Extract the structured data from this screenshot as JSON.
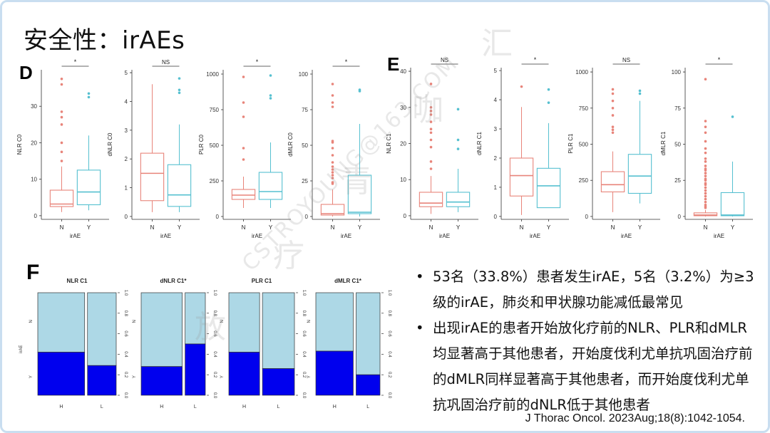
{
  "slide": {
    "title": "安全性：irAEs",
    "panel_labels": {
      "d": "D",
      "e": "E",
      "f": "F"
    },
    "bullets": [
      "53名（33.8%）患者发生irAE，5名（3.2%）为≥3级的irAE，肺炎和甲状腺功能减低最常见",
      "出现irAE的患者开始放化疗前的NLR、PLR和dMLR均显著高于其他患者，开始度伐利尤单抗巩固治疗前的dMLR同样显著高于其他患者，而开始度伐利尤单抗巩固治疗前的dNLR低于其他患者"
    ],
    "citation": "J Thorac Oncol. 2023Aug;18(8):1042-1054.",
    "watermark": [
      "放",
      "疗",
      "青",
      "咖",
      "汇",
      "CSTROYOUNG@163.COM"
    ]
  },
  "colors": {
    "n_box": "#e8847a",
    "y_box": "#56c0d0",
    "mosaic_light": "#add8e6",
    "mosaic_dark": "#0000ee",
    "frame": "#c9def0"
  },
  "chart_data": [
    {
      "type": "box",
      "panel": "D",
      "ylabel": "NLR C0",
      "xlabel": "irAE",
      "categories": [
        "N",
        "Y"
      ],
      "ylim": [
        -1,
        40
      ],
      "yticks": [
        "0",
        "10",
        "20",
        "30"
      ],
      "signif": "*",
      "boxes": [
        {
          "min": 1,
          "q1": 2.5,
          "median": 3.2,
          "q3": 7,
          "max": 13.5,
          "outliers": [
            15,
            17.5,
            20,
            25,
            27,
            28.5,
            36,
            37.5
          ]
        },
        {
          "min": 1.5,
          "q1": 3,
          "median": 6.5,
          "q3": 12.5,
          "max": 22,
          "outliers": [
            32.5,
            33.5
          ]
        }
      ]
    },
    {
      "type": "box",
      "panel": "D",
      "ylabel": "dNLR C0",
      "xlabel": "irAE",
      "categories": [
        "N",
        "Y"
      ],
      "ylim": [
        -0.1,
        5.1
      ],
      "yticks": [
        "0",
        "1",
        "2",
        "3",
        "4",
        "5"
      ],
      "signif": "NS",
      "boxes": [
        {
          "min": 0.15,
          "q1": 0.55,
          "median": 1.5,
          "q3": 2.2,
          "max": 4.6,
          "outliers": []
        },
        {
          "min": 0.15,
          "q1": 0.35,
          "median": 0.75,
          "q3": 1.8,
          "max": 3.2,
          "outliers": [
            4.3,
            4.4,
            4.8
          ]
        }
      ]
    },
    {
      "type": "box",
      "panel": "D",
      "ylabel": "PLR C0",
      "xlabel": "irAE",
      "categories": [
        "N",
        "Y"
      ],
      "ylim": [
        -20,
        1030
      ],
      "yticks": [
        "0",
        "250",
        "500",
        "750",
        "1000"
      ],
      "signif": "*",
      "boxes": [
        {
          "min": 60,
          "q1": 120,
          "median": 150,
          "q3": 190,
          "max": 280,
          "outliers": [
            400,
            480,
            700,
            800,
            980
          ]
        },
        {
          "min": 60,
          "q1": 120,
          "median": 175,
          "q3": 310,
          "max": 520,
          "outliers": [
            830,
            850,
            990
          ]
        }
      ]
    },
    {
      "type": "box",
      "panel": "D",
      "ylabel": "dMLR C0",
      "xlabel": "irAE",
      "categories": [
        "N",
        "Y"
      ],
      "ylim": [
        -2,
        103
      ],
      "yticks": [
        "0",
        "25",
        "50",
        "75",
        "100"
      ],
      "signif": "*",
      "boxes": [
        {
          "min": 0,
          "q1": 1,
          "median": 2,
          "q3": 8.5,
          "max": 19,
          "outliers": [
            23,
            24,
            27,
            29,
            31,
            33,
            35,
            38,
            43,
            48,
            52,
            53,
            77,
            80,
            85,
            93
          ]
        },
        {
          "min": 0,
          "q1": 2,
          "median": 3,
          "q3": 29,
          "max": 65,
          "outliers": [
            88,
            89
          ]
        }
      ]
    },
    {
      "type": "box",
      "panel": "E",
      "ylabel": "NLR C1",
      "xlabel": "irAE",
      "categories": [
        "N",
        "Y"
      ],
      "ylim": [
        -1,
        41
      ],
      "yticks": [
        "0",
        "10",
        "20",
        "30",
        "40"
      ],
      "signif": "NS",
      "boxes": [
        {
          "min": 0.5,
          "q1": 2.5,
          "median": 3.5,
          "q3": 6.5,
          "max": 11,
          "outliers": [
            13,
            15,
            19,
            21,
            23,
            24,
            26,
            28,
            29,
            30,
            36.5
          ]
        },
        {
          "min": 1,
          "q1": 2.5,
          "median": 3.8,
          "q3": 6.5,
          "max": 13,
          "outliers": [
            18.5,
            21,
            29.5
          ]
        }
      ]
    },
    {
      "type": "box",
      "panel": "E",
      "ylabel": "dNLR C1",
      "xlabel": "irAE",
      "categories": [
        "N",
        "Y"
      ],
      "ylim": [
        -0.1,
        5.1
      ],
      "yticks": [
        "0",
        "1",
        "2",
        "3",
        "4",
        "5"
      ],
      "signif": "*",
      "boxes": [
        {
          "min": 0.05,
          "q1": 0.7,
          "median": 1.4,
          "q3": 2.0,
          "max": 3.75,
          "outliers": [
            4.45
          ]
        },
        {
          "min": 0.3,
          "q1": 0.3,
          "median": 1.05,
          "q3": 1.65,
          "max": 3.2,
          "outliers": [
            3.9,
            4.35
          ]
        }
      ]
    },
    {
      "type": "box",
      "panel": "E",
      "ylabel": "PLR C1",
      "xlabel": "irAE",
      "categories": [
        "N",
        "Y"
      ],
      "ylim": [
        -20,
        1030
      ],
      "yticks": [
        "0",
        "250",
        "500",
        "750",
        "1000"
      ],
      "signif": "NS",
      "boxes": [
        {
          "min": 30,
          "q1": 170,
          "median": 220,
          "q3": 310,
          "max": 450,
          "outliers": [
            580,
            600,
            620,
            700,
            750,
            800,
            850,
            880
          ]
        },
        {
          "min": 90,
          "q1": 160,
          "median": 280,
          "q3": 430,
          "max": 800,
          "outliers": [
            850,
            870
          ]
        }
      ]
    },
    {
      "type": "box",
      "panel": "E",
      "ylabel": "dMLR C1",
      "xlabel": "irAE",
      "categories": [
        "N",
        "Y"
      ],
      "ylim": [
        -2,
        103
      ],
      "yticks": [
        "0",
        "25",
        "50",
        "75",
        "100"
      ],
      "signif": "*",
      "boxes": [
        {
          "min": 0,
          "q1": 0.5,
          "median": 1,
          "q3": 2.5,
          "max": 4.5,
          "outliers": [
            6,
            7,
            8,
            10,
            12,
            14,
            16,
            18,
            20,
            22,
            23,
            25,
            26,
            28,
            30,
            32,
            33,
            35,
            38,
            40,
            44,
            47,
            52,
            58,
            62,
            66,
            95
          ]
        },
        {
          "min": 0,
          "q1": 0.5,
          "median": 1,
          "q3": 16.5,
          "max": 38,
          "outliers": [
            69
          ]
        }
      ]
    },
    {
      "type": "mosaic",
      "panel": "F",
      "title": "NLR C1",
      "categories": [
        "H",
        "L"
      ],
      "widths": [
        0.62,
        0.38
      ],
      "y_share": [
        0.42,
        0.29
      ],
      "ylabel": "irAE",
      "row_labels": [
        "N",
        "Y"
      ],
      "yticks": [
        "0.0",
        "0.2",
        "0.4",
        "0.6",
        "0.8",
        "1.0"
      ]
    },
    {
      "type": "mosaic",
      "panel": "F",
      "title": "dNLR C1*",
      "categories": [
        "H",
        "L"
      ],
      "widths": [
        0.67,
        0.33
      ],
      "y_share": [
        0.28,
        0.5
      ],
      "ylabel": "irAE",
      "row_labels": [
        "N",
        "Y"
      ],
      "yticks": [
        "0.0",
        "0.2",
        "0.4",
        "0.6",
        "0.8",
        "1.0"
      ]
    },
    {
      "type": "mosaic",
      "panel": "F",
      "title": "PLR C1",
      "categories": [
        "H",
        "L"
      ],
      "widths": [
        0.49,
        0.51
      ],
      "y_share": [
        0.42,
        0.26
      ],
      "ylabel": "irAE",
      "row_labels": [
        "N",
        "Y"
      ],
      "yticks": [
        "0.0",
        "0.2",
        "0.4",
        "0.6",
        "0.8",
        "1.0"
      ]
    },
    {
      "type": "mosaic",
      "panel": "F",
      "title": "dMLR C1*",
      "categories": [
        "H",
        "L"
      ],
      "widths": [
        0.61,
        0.39
      ],
      "y_share": [
        0.43,
        0.2
      ],
      "ylabel": "irAE",
      "row_labels": [
        "N",
        "Y"
      ],
      "yticks": [
        "0.0",
        "0.2",
        "0.4",
        "0.6",
        "0.8",
        "1.0"
      ]
    }
  ]
}
